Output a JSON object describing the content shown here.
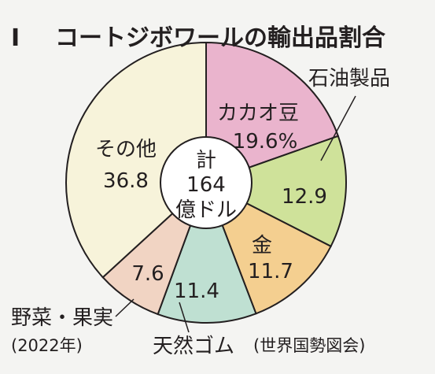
{
  "chart_data": {
    "type": "pie",
    "title_numeral": "Ⅰ",
    "title": "コートジボワールの輸出品割合",
    "center_label": [
      "計",
      "164",
      "億ドル"
    ],
    "slices": [
      {
        "name": "カカオ豆",
        "value": 19.6,
        "value_label": "19.6%",
        "color": "#eab4cd"
      },
      {
        "name": "石油製品",
        "value": 12.9,
        "value_label": "12.9",
        "color": "#cfe29a"
      },
      {
        "name": "金",
        "value": 11.7,
        "value_label": "11.7",
        "color": "#f4cf90"
      },
      {
        "name": "天然ゴム",
        "value": 11.4,
        "value_label": "11.4",
        "color": "#bfe0d2"
      },
      {
        "name": "野菜・果実",
        "value": 7.6,
        "value_label": "7.6",
        "color": "#f1d4c3"
      },
      {
        "name": "その他",
        "value": 36.8,
        "value_label": "36.8",
        "color": "#f7f3da"
      }
    ],
    "year_note": "(2022年)",
    "source": "(世界国勢図会)"
  }
}
